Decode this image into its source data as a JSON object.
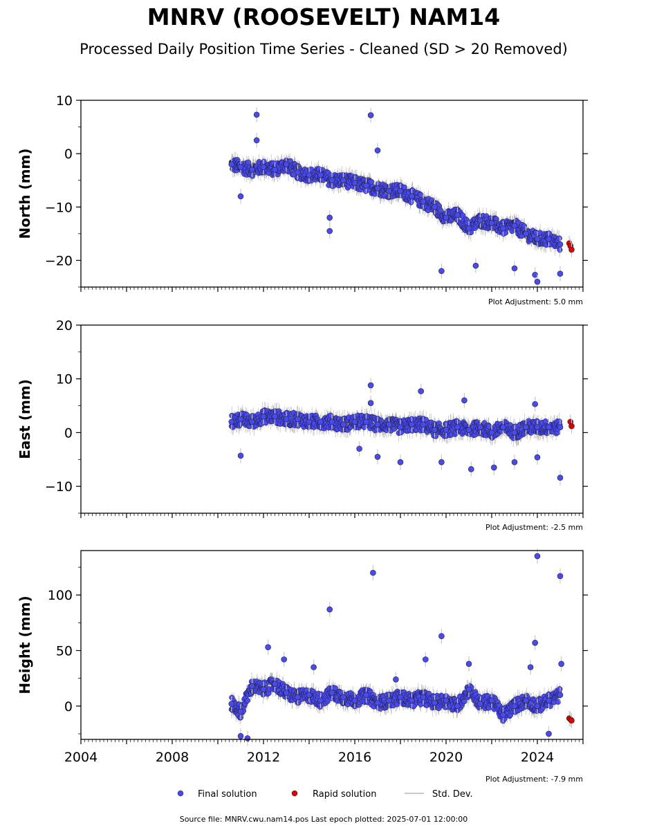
{
  "title": "MNRV (ROOSEVELT) NAM14",
  "subtitle": "Processed Daily Position Time Series - Cleaned (SD > 20 Removed)",
  "footer": "Source file: MNRV.cwu.nam14.pos  Last epoch plotted: 2025-07-01 12:00:00",
  "legend": {
    "final": "Final solution",
    "rapid": "Rapid solution",
    "std": "Std. Dev."
  },
  "colors": {
    "final": "#4a4af0",
    "rapid": "#e00000",
    "std": "#c8c8c8",
    "errorbar": "#707070"
  },
  "chart_data": [
    {
      "type": "scatter",
      "ylabel": "North (mm)",
      "adjustment": "Plot Adjustment: 5.0 mm",
      "xlim": [
        2004,
        2026
      ],
      "ylim": [
        -25,
        10
      ],
      "yticks": [
        10,
        0,
        -10,
        -20
      ],
      "ytick_labels": [
        "10",
        "0",
        "−10",
        "−20"
      ],
      "series": [
        {
          "role": "final",
          "x": [
            2010.6,
            2011.0,
            2011.5,
            2012.0,
            2012.5,
            2013.0,
            2013.5,
            2014.0,
            2014.5,
            2015.0,
            2015.5,
            2016.0,
            2016.5,
            2017.0,
            2017.5,
            2018.0,
            2018.5,
            2019.0,
            2019.5,
            2020.0,
            2020.5,
            2021.0,
            2021.5,
            2022.0,
            2022.5,
            2023.0,
            2023.5,
            2024.0,
            2024.5,
            2025.0
          ],
          "y": [
            -2,
            -2.5,
            -3,
            -2.5,
            -3,
            -2,
            -3.5,
            -4,
            -4,
            -5,
            -5,
            -5.5,
            -6,
            -6.5,
            -7,
            -7,
            -8,
            -9,
            -10,
            -12,
            -11.5,
            -14,
            -12.5,
            -13,
            -14,
            -13.5,
            -15,
            -16,
            -16,
            -17
          ]
        },
        {
          "role": "final-outlier",
          "x": [
            2011.0,
            2011.7,
            2011.7,
            2014.9,
            2014.9,
            2016.7,
            2017.0,
            2019.8,
            2021.3,
            2023.0,
            2023.9,
            2024.0,
            2025.0
          ],
          "y": [
            -8,
            2.5,
            7.3,
            -12,
            -14.5,
            7.2,
            0.6,
            -22,
            -21,
            -21.5,
            -22.7,
            -24,
            -22.5
          ]
        },
        {
          "role": "rapid",
          "x": [
            2025.4,
            2025.45,
            2025.5
          ],
          "y": [
            -16.8,
            -17.3,
            -18
          ]
        }
      ]
    },
    {
      "type": "scatter",
      "ylabel": "East (mm)",
      "adjustment": "Plot Adjustment: -2.5 mm",
      "xlim": [
        2004,
        2026
      ],
      "ylim": [
        -15,
        20
      ],
      "yticks": [
        20,
        10,
        0,
        -10
      ],
      "ytick_labels": [
        "20",
        "10",
        "0",
        "−10"
      ],
      "series": [
        {
          "role": "final",
          "x": [
            2010.6,
            2011.0,
            2011.5,
            2012.0,
            2012.5,
            2013.0,
            2013.5,
            2014.0,
            2014.5,
            2015.0,
            2015.5,
            2016.0,
            2016.5,
            2017.0,
            2017.5,
            2018.0,
            2018.5,
            2019.0,
            2019.5,
            2020.0,
            2020.5,
            2021.0,
            2021.5,
            2022.0,
            2022.5,
            2023.0,
            2023.5,
            2024.0,
            2024.5,
            2025.0
          ],
          "y": [
            2,
            2.5,
            2,
            3,
            3,
            2.5,
            2.5,
            2,
            2,
            2,
            1.5,
            2,
            2,
            1.5,
            1.5,
            1,
            1.5,
            1.5,
            0.5,
            0.5,
            1,
            0.5,
            1,
            0,
            1,
            0,
            1,
            1,
            1,
            1
          ]
        },
        {
          "role": "final-outlier",
          "x": [
            2011.0,
            2016.7,
            2016.7,
            2016.2,
            2017.0,
            2018.0,
            2018.9,
            2019.8,
            2020.8,
            2021.1,
            2022.1,
            2023.0,
            2023.9,
            2024.0,
            2025.0
          ],
          "y": [
            -4.3,
            8.8,
            5.5,
            -3,
            -4.5,
            -5.5,
            7.7,
            -5.5,
            6,
            -6.8,
            -6.5,
            -5.5,
            5.3,
            -4.6,
            -8.4
          ]
        },
        {
          "role": "rapid",
          "x": [
            2025.45,
            2025.5
          ],
          "y": [
            2,
            1.2
          ]
        }
      ]
    },
    {
      "type": "scatter",
      "ylabel": "Height (mm)",
      "adjustment": "Plot Adjustment: -7.9 mm",
      "xlim": [
        2004,
        2026
      ],
      "ylim": [
        -30,
        140
      ],
      "yticks": [
        100,
        50,
        0
      ],
      "ytick_labels": [
        "100",
        "50",
        "0"
      ],
      "xticks": [
        2004,
        2008,
        2012,
        2016,
        2020,
        2024
      ],
      "xtick_labels": [
        "2004",
        "2008",
        "2012",
        "2016",
        "2020",
        "2024"
      ],
      "series": [
        {
          "role": "final",
          "x": [
            2010.6,
            2011.0,
            2011.5,
            2012.0,
            2012.5,
            2013.0,
            2013.5,
            2014.0,
            2014.5,
            2015.0,
            2015.5,
            2016.0,
            2016.5,
            2017.0,
            2017.5,
            2018.0,
            2018.5,
            2019.0,
            2019.5,
            2020.0,
            2020.5,
            2021.0,
            2021.5,
            2022.0,
            2022.5,
            2023.0,
            2023.5,
            2024.0,
            2024.5,
            2025.0
          ],
          "y": [
            2,
            -5,
            18,
            15,
            20,
            12,
            8,
            10,
            5,
            12,
            8,
            5,
            10,
            3,
            5,
            8,
            5,
            8,
            3,
            5,
            0,
            15,
            2,
            5,
            -8,
            0,
            5,
            0,
            5,
            10
          ]
        },
        {
          "role": "final-outlier",
          "x": [
            2011.0,
            2011.3,
            2012.2,
            2012.9,
            2014.2,
            2014.9,
            2016.8,
            2017.8,
            2019.1,
            2019.8,
            2021.0,
            2023.7,
            2023.9,
            2024.0,
            2024.5,
            2025.0,
            2025.05
          ],
          "y": [
            -27,
            -29,
            53,
            42,
            35,
            87,
            120,
            24,
            42,
            63,
            38,
            35,
            57,
            135,
            -25,
            117,
            38
          ]
        },
        {
          "role": "rapid",
          "x": [
            2025.4,
            2025.45,
            2025.5
          ],
          "y": [
            -11,
            -12,
            -13
          ]
        }
      ]
    }
  ]
}
